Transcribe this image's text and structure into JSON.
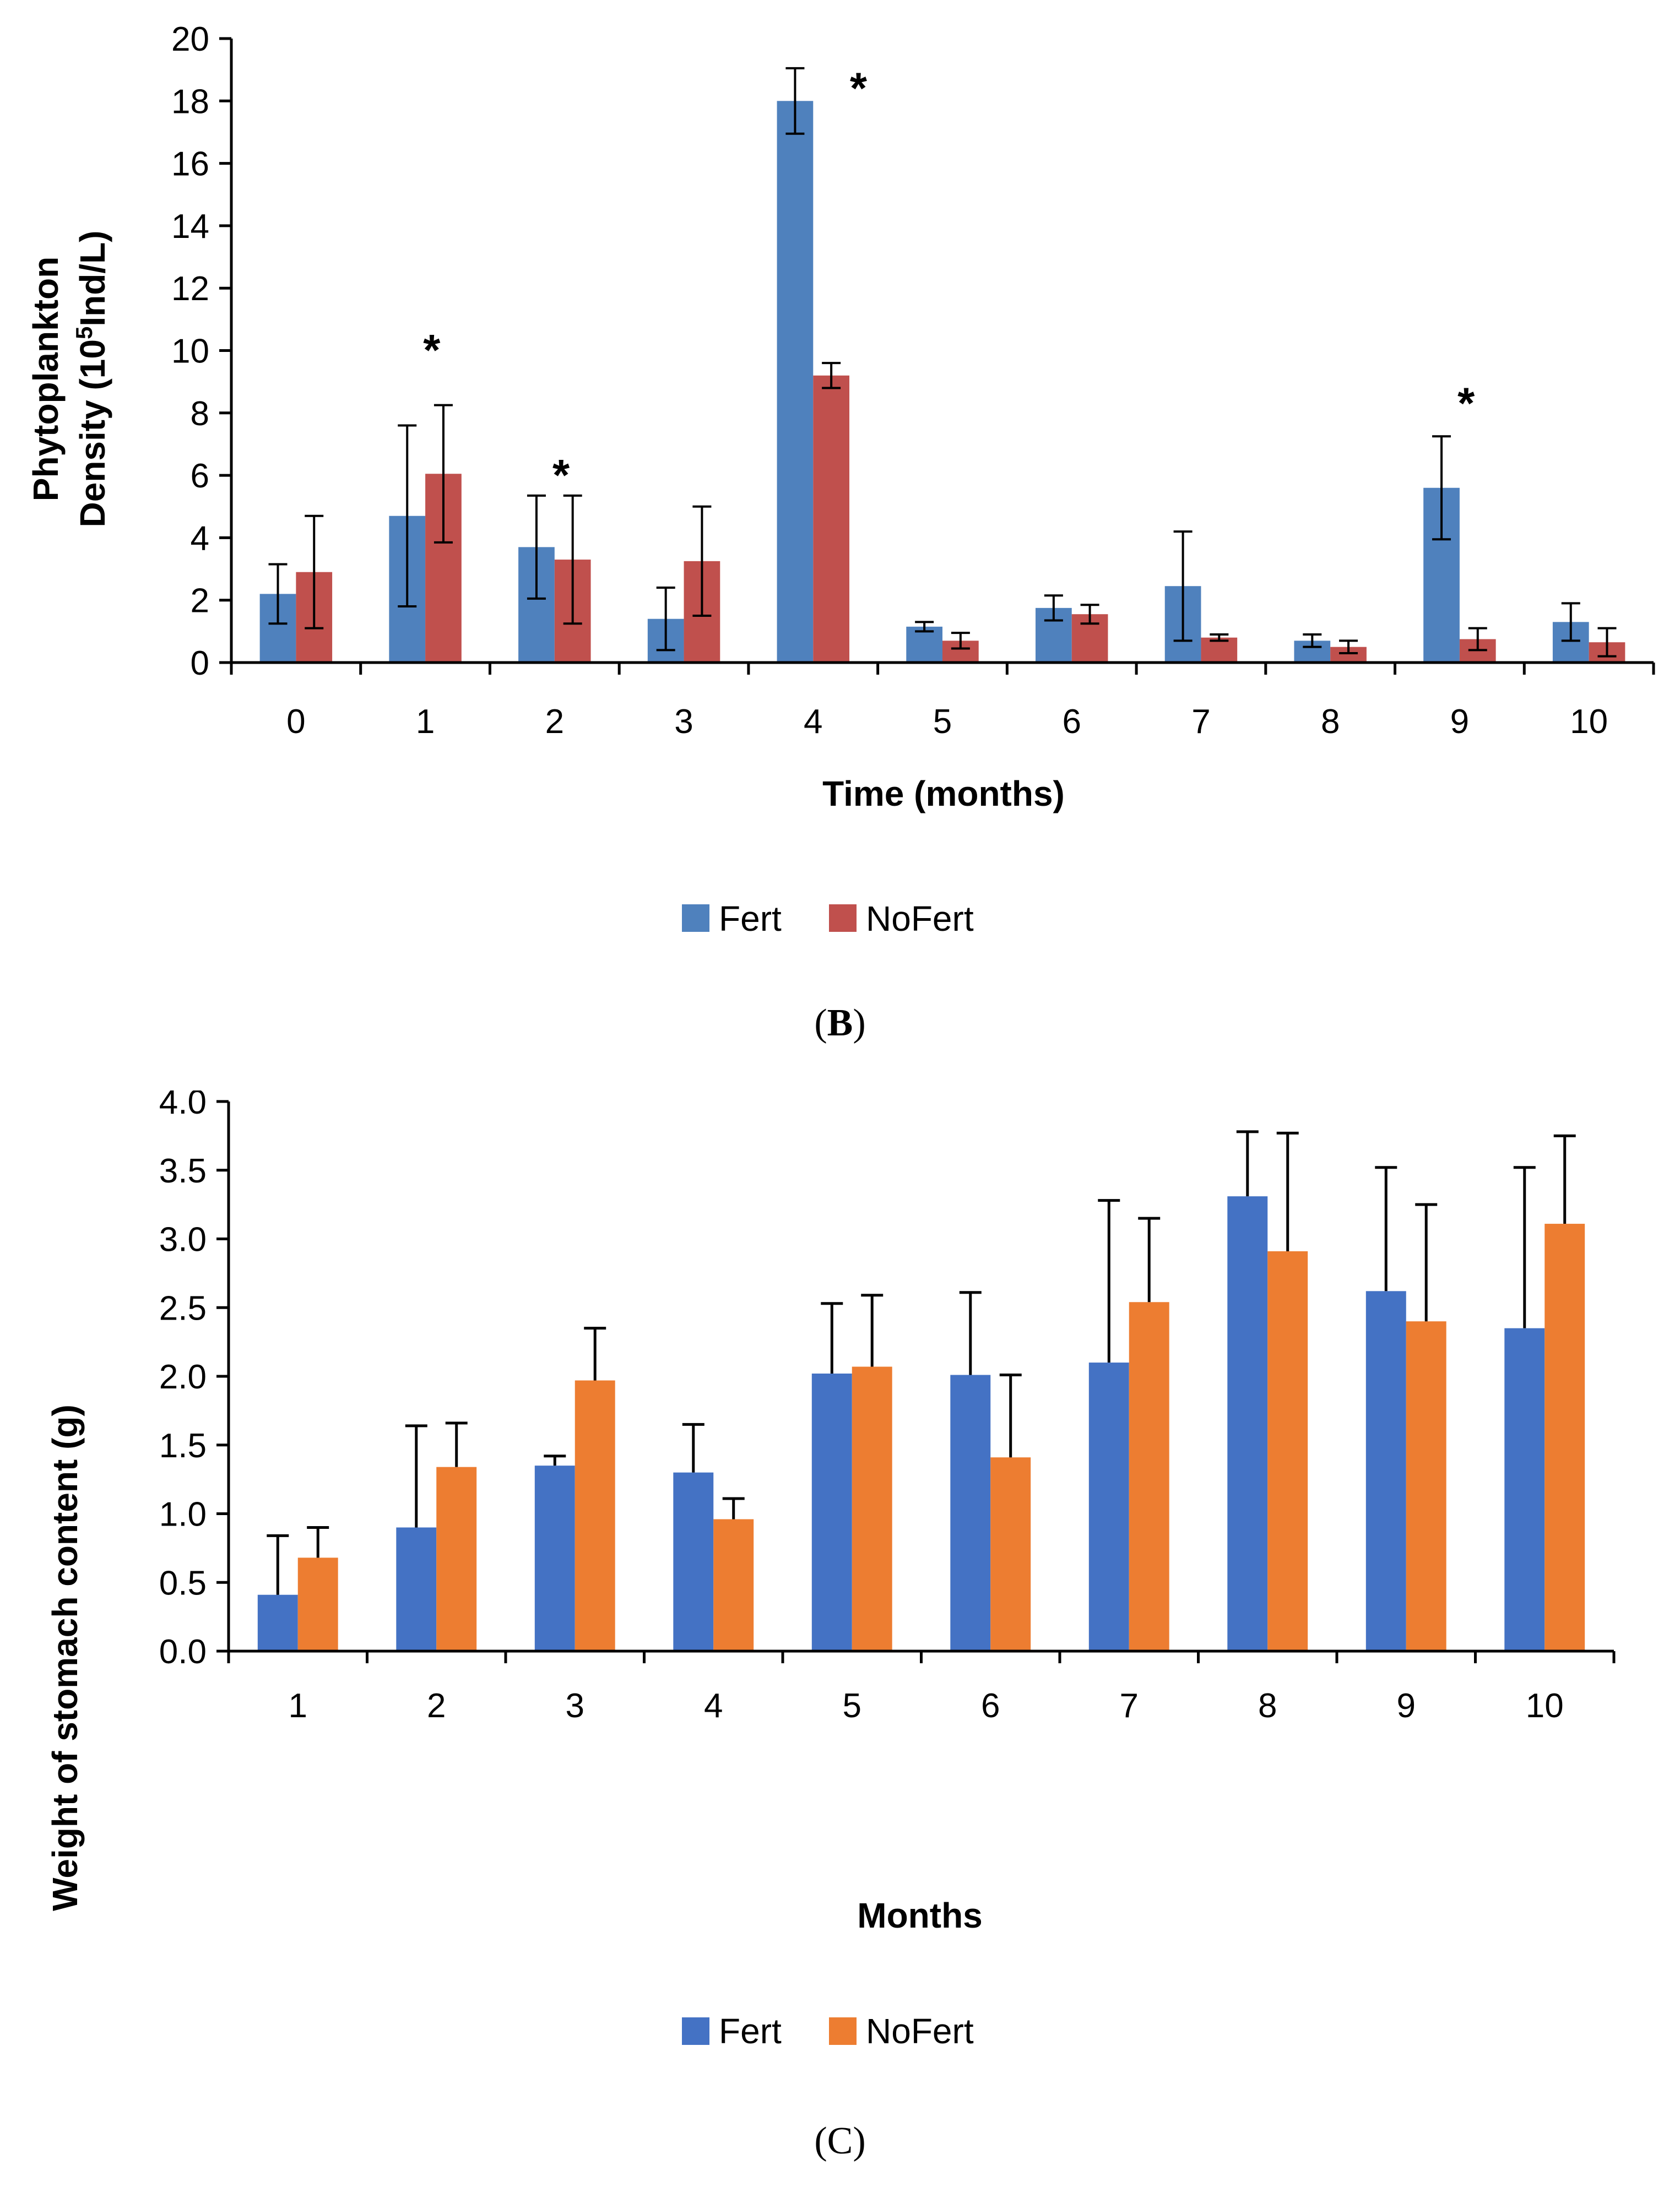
{
  "chart_data": [
    {
      "type": "bar",
      "caption_open": "(",
      "caption_letter": "B",
      "caption_close": ")",
      "xlabel": "Time (months)",
      "ylabel_line1": "Phytoplankton",
      "ylabel_line2_pre": "Density (10",
      "ylabel_line2_sup": "5",
      "ylabel_line2_post": "Ind/L)",
      "ylim": [
        0,
        20
      ],
      "yticks": [
        "0",
        "2",
        "4",
        "6",
        "8",
        "10",
        "12",
        "14",
        "16",
        "18",
        "20"
      ],
      "categories": [
        "0",
        "1",
        "2",
        "3",
        "4",
        "5",
        "6",
        "7",
        "8",
        "9",
        "10"
      ],
      "series": [
        {
          "name": "Fert",
          "color": "#4F81BD",
          "values": [
            2.2,
            4.7,
            3.7,
            1.4,
            18.0,
            1.15,
            1.75,
            2.45,
            0.7,
            5.6,
            1.3
          ],
          "errors": [
            0.95,
            2.9,
            1.65,
            1.0,
            1.05,
            0.15,
            0.4,
            1.75,
            0.2,
            1.65,
            0.6
          ]
        },
        {
          "name": "NoFert",
          "color": "#C0504D",
          "values": [
            2.9,
            6.05,
            3.3,
            3.25,
            9.2,
            0.7,
            1.55,
            0.8,
            0.5,
            0.75,
            0.65
          ],
          "errors": [
            1.8,
            2.2,
            2.05,
            1.75,
            0.4,
            0.25,
            0.3,
            0.1,
            0.2,
            0.35,
            0.45
          ]
        }
      ],
      "annotations": [
        {
          "category_index": 1,
          "text": "*",
          "y": 10.5
        },
        {
          "category_index": 2,
          "text": "*",
          "y": 6.5
        },
        {
          "category_index": 4,
          "text": "*",
          "y": 18.9
        },
        {
          "category_index": 9,
          "text": "*",
          "y": 8.8
        }
      ],
      "legend": [
        "Fert",
        "NoFert"
      ],
      "legend_position": "bottom",
      "grid": false
    },
    {
      "type": "bar",
      "caption": "(C)",
      "xlabel": "Months",
      "ylabel": "Weight of stomach content (g)",
      "ylim": [
        0,
        4.0
      ],
      "yticks": [
        "0.0",
        "0.5",
        "1.0",
        "1.5",
        "2.0",
        "2.5",
        "3.0",
        "3.5",
        "4.0"
      ],
      "categories": [
        "1",
        "2",
        "3",
        "4",
        "5",
        "6",
        "7",
        "8",
        "9",
        "10"
      ],
      "series": [
        {
          "name": "Fert",
          "color": "#4472C4",
          "values": [
            0.41,
            0.9,
            1.35,
            1.3,
            2.02,
            2.01,
            2.1,
            3.31,
            2.62,
            2.35
          ],
          "errors": [
            0.43,
            0.74,
            0.07,
            0.35,
            0.51,
            0.6,
            1.18,
            0.47,
            0.9,
            1.17
          ]
        },
        {
          "name": "NoFert",
          "color": "#ED7D31",
          "values": [
            0.68,
            1.34,
            1.97,
            0.96,
            2.07,
            1.41,
            2.54,
            2.91,
            2.4,
            3.11
          ],
          "errors": [
            0.22,
            0.32,
            0.38,
            0.15,
            0.52,
            0.6,
            0.61,
            0.86,
            0.85,
            0.64
          ]
        }
      ],
      "legend": [
        "Fert",
        "NoFert"
      ],
      "legend_position": "bottom",
      "grid": false
    }
  ]
}
